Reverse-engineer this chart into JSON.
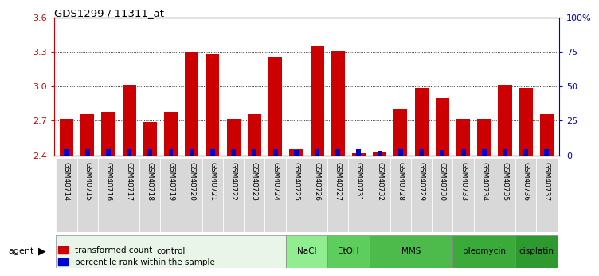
{
  "title": "GDS1299 / 11311_at",
  "samples": [
    "GSM40714",
    "GSM40715",
    "GSM40716",
    "GSM40717",
    "GSM40718",
    "GSM40719",
    "GSM40720",
    "GSM40721",
    "GSM40722",
    "GSM40723",
    "GSM40724",
    "GSM40725",
    "GSM40726",
    "GSM40727",
    "GSM40731",
    "GSM40732",
    "GSM40728",
    "GSM40729",
    "GSM40730",
    "GSM40733",
    "GSM40734",
    "GSM40735",
    "GSM40736",
    "GSM40737"
  ],
  "red_values": [
    2.72,
    2.76,
    2.78,
    3.01,
    2.69,
    2.78,
    3.3,
    3.28,
    2.72,
    2.76,
    3.25,
    2.45,
    3.35,
    3.31,
    2.42,
    2.43,
    2.8,
    2.99,
    2.9,
    2.72,
    2.72,
    3.01,
    2.99,
    2.76
  ],
  "blue_heights": [
    0.055,
    0.055,
    0.055,
    0.055,
    0.055,
    0.055,
    0.055,
    0.055,
    0.055,
    0.055,
    0.055,
    0.045,
    0.055,
    0.055,
    0.055,
    0.04,
    0.055,
    0.055,
    0.045,
    0.055,
    0.055,
    0.055,
    0.055,
    0.055
  ],
  "red_color": "#cc0000",
  "blue_color": "#0000cc",
  "ylim_left": [
    2.4,
    3.6
  ],
  "ylim_right": [
    0,
    100
  ],
  "yticks_left": [
    2.4,
    2.7,
    3.0,
    3.3,
    3.6
  ],
  "yticks_right": [
    0,
    25,
    50,
    75,
    100
  ],
  "ytick_labels_right": [
    "0",
    "25",
    "50",
    "75",
    "100%"
  ],
  "agents": [
    {
      "label": "control",
      "start": 0,
      "end": 11,
      "color": "#e8f5e8"
    },
    {
      "label": "NaCl",
      "start": 11,
      "end": 13,
      "color": "#90ee90"
    },
    {
      "label": "EtOH",
      "start": 13,
      "end": 15,
      "color": "#5dcd5d"
    },
    {
      "label": "MMS",
      "start": 15,
      "end": 19,
      "color": "#4cbb4c"
    },
    {
      "label": "bleomycin",
      "start": 19,
      "end": 22,
      "color": "#3aaa3a"
    },
    {
      "label": "cisplatin",
      "start": 22,
      "end": 24,
      "color": "#2e992e"
    }
  ],
  "legend_red": "transformed count",
  "legend_blue": "percentile rank within the sample",
  "bar_width": 0.65,
  "tick_color_left": "#cc0000",
  "tick_color_right": "#0000cc",
  "plot_bg_color": "#ffffff",
  "base_value": 2.4,
  "xtick_bg_color": "#d8d8d8"
}
